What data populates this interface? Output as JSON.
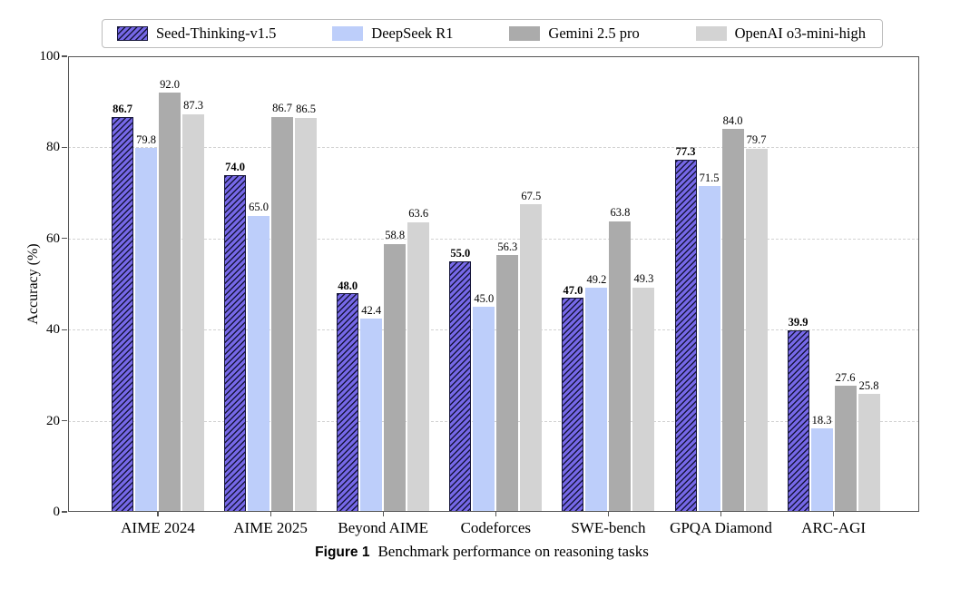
{
  "figure": {
    "caption_label": "Figure 1",
    "caption_text": "Benchmark performance on reasoning tasks"
  },
  "colors": {
    "seed_fill": "#7668E8",
    "seed_hatch": "#16163c",
    "deepseek_fill": "#BDCEFA",
    "gemini_fill": "#ABABAB",
    "openai_fill": "#D3D3D3",
    "spine": "#555555",
    "grid": "#d2d2d2"
  },
  "chart_data": {
    "type": "bar",
    "title": "",
    "xlabel": "",
    "ylabel": "Accuracy (%)",
    "ylim": [
      0,
      100
    ],
    "yticks": [
      0,
      20,
      40,
      60,
      80,
      100
    ],
    "grid": "horizontal dashed at 20/40/60/80",
    "legend_position": "top center, horizontal, boxed",
    "bar_value_labels": "one decimal above each bar; first series bold",
    "categories": [
      "AIME 2024",
      "AIME 2025",
      "Beyond AIME",
      "Codeforces",
      "SWE-bench",
      "GPQA Diamond",
      "ARC-AGI"
    ],
    "series": [
      {
        "name": "Seed-Thinking-v1.5",
        "color": "#7668E8",
        "hatch": "///",
        "bold_labels": true,
        "values": [
          86.7,
          74.0,
          48.0,
          55.0,
          47.0,
          77.3,
          39.9
        ]
      },
      {
        "name": "DeepSeek R1",
        "color": "#BDCEFA",
        "hatch": null,
        "bold_labels": false,
        "values": [
          79.8,
          65.0,
          42.4,
          45.0,
          49.2,
          71.5,
          18.3
        ]
      },
      {
        "name": "Gemini 2.5 pro",
        "color": "#ABABAB",
        "hatch": null,
        "bold_labels": false,
        "values": [
          92.0,
          86.7,
          58.8,
          56.3,
          63.8,
          84.0,
          27.6
        ]
      },
      {
        "name": "OpenAI o3-mini-high",
        "color": "#D3D3D3",
        "hatch": null,
        "bold_labels": false,
        "values": [
          87.3,
          86.5,
          63.6,
          67.5,
          49.3,
          79.7,
          25.8
        ]
      }
    ]
  }
}
